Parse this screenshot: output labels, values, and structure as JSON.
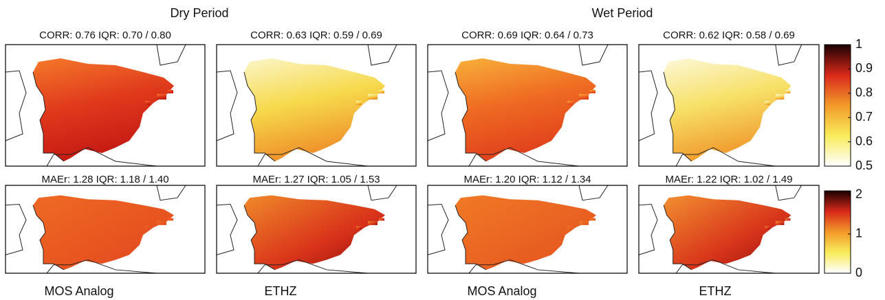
{
  "headers": [
    "Dry Period",
    "Wet Period"
  ],
  "panels": [
    {
      "title": "CORR:  0.76 IQR: 0.70 / 0.80"
    },
    {
      "title": "CORR:  0.63 IQR: 0.59 / 0.69"
    },
    {
      "title": "CORR:  0.69 IQR: 0.64 / 0.73"
    },
    {
      "title": "CORR:  0.62 IQR: 0.58 / 0.69"
    },
    {
      "title": "MAEr:  1.28 IQR: 1.18 / 1.40"
    },
    {
      "title": "MAEr:  1.27 IQR: 1.05 / 1.53"
    },
    {
      "title": "MAEr:  1.20 IQR: 1.12 / 1.34"
    },
    {
      "title": "MAEr:  1.22 IQR: 1.02 / 1.49"
    }
  ],
  "column_labels": [
    "MOS Analog",
    "ETHZ",
    "MOS Analog",
    "ETHZ"
  ],
  "colorbars": [
    {
      "lim": [
        0.5,
        1
      ],
      "ticks": [
        1,
        0.9,
        0.8,
        0.7,
        0.6,
        0.5
      ]
    },
    {
      "lim": [
        0,
        2.1
      ],
      "ticks": [
        2,
        1,
        0
      ]
    }
  ]
}
